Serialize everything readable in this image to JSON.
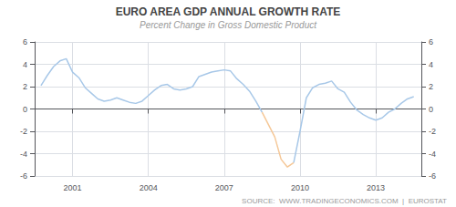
{
  "chart_data": {
    "type": "line",
    "title": "EURO AREA GDP ANNUAL GROWTH RATE",
    "subtitle": "Percent Change in Gross Domestic Product",
    "annotations": [
      "SOURCE:  WWW.TRADINGECONOMICS.COM  |  EUROSTAT"
    ],
    "xlim": [
      1999.5,
      2014.8
    ],
    "xticks": [
      2001,
      2004,
      2007,
      2010,
      2013
    ],
    "ylim": [
      -6,
      6
    ],
    "yticks": [
      -6,
      -4,
      -2,
      0,
      2,
      4,
      6
    ],
    "y2lim": [
      -6,
      6
    ],
    "y2ticks": [
      -6,
      -4,
      -2,
      0,
      2,
      4,
      6
    ],
    "grid": true,
    "series": [
      {
        "color": "#a8c8e8",
        "x": [
          1999.75,
          2000.0,
          2000.25,
          2000.5,
          2000.75,
          2001.0,
          2001.25,
          2001.5,
          2001.75,
          2002.0,
          2002.25,
          2002.5,
          2002.75,
          2003.0,
          2003.25,
          2003.5,
          2003.75,
          2004.0,
          2004.25,
          2004.5,
          2004.75,
          2005.0,
          2005.25,
          2005.5,
          2005.75,
          2006.0,
          2006.25,
          2006.5,
          2006.75,
          2007.0,
          2007.25,
          2007.5,
          2007.75,
          2008.0,
          2008.25,
          2008.5
        ],
        "values": [
          2.1,
          3.0,
          3.8,
          4.3,
          4.5,
          3.3,
          2.8,
          1.9,
          1.4,
          0.9,
          0.7,
          0.8,
          1.0,
          0.8,
          0.6,
          0.5,
          0.7,
          1.2,
          1.7,
          2.1,
          2.2,
          1.8,
          1.7,
          1.8,
          2.0,
          2.9,
          3.1,
          3.3,
          3.4,
          3.5,
          3.4,
          2.7,
          2.2,
          1.6,
          0.7,
          -0.3
        ]
      },
      {
        "color": "#f5c898",
        "x": [
          2008.5,
          2008.75,
          2009.0,
          2009.25,
          2009.5,
          2009.75
        ],
        "values": [
          -0.3,
          -1.4,
          -2.5,
          -4.5,
          -5.2,
          -4.8
        ]
      },
      {
        "color": "#a8c8e8",
        "x": [
          2009.75,
          2010.0,
          2010.25,
          2010.5,
          2010.75,
          2011.0,
          2011.25,
          2011.5,
          2011.75,
          2012.0,
          2012.25,
          2012.5,
          2012.75,
          2013.0,
          2013.25,
          2013.5,
          2013.75,
          2014.0,
          2014.25,
          2014.5
        ],
        "values": [
          -4.8,
          -2.0,
          1.0,
          1.9,
          2.2,
          2.3,
          2.5,
          1.8,
          1.5,
          0.6,
          -0.1,
          -0.5,
          -0.8,
          -1.0,
          -0.8,
          -0.3,
          0.0,
          0.5,
          0.9,
          1.1
        ]
      }
    ]
  }
}
